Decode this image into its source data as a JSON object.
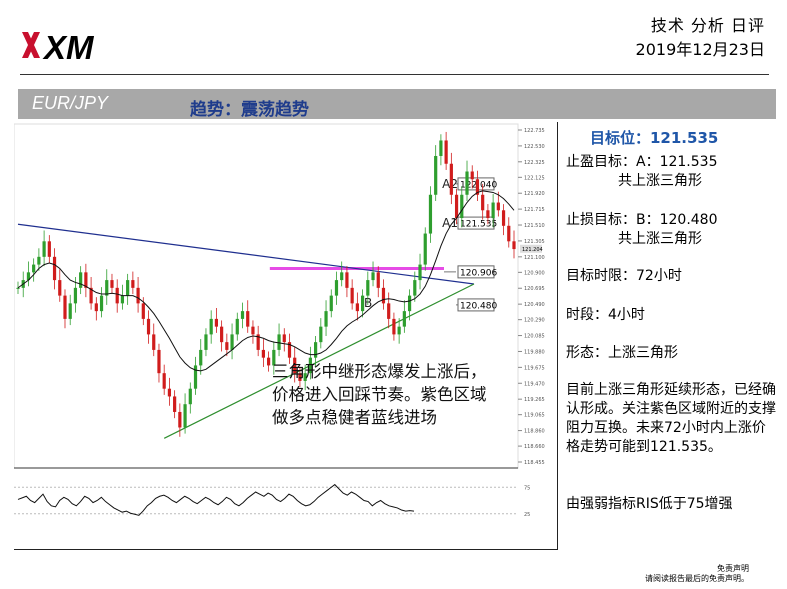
{
  "header": {
    "logo_text": "XM",
    "title": "技术 分析 日评",
    "date": "2019年12月23日"
  },
  "band": {
    "pair": "EUR/JPY",
    "trend": "趋势：震荡趋势"
  },
  "panel": {
    "target": "目标位：121.535",
    "take_profit_1": "止盈目标：A：121.535",
    "take_profit_2": "共上涨三角形",
    "stop_loss_1": "止损目标：B：120.480",
    "stop_loss_2": "共上涨三角形",
    "time_limit": "目标时限：72小时",
    "period": "时段：4小时",
    "pattern": "形态：上涨三角形",
    "description": "目前上涨三角形延续形态，已经确认形成。关注紫色区域附近的支撑阻力互换。未来72小时内上涨价格走势可能到121.535。",
    "rsi_note": "由强弱指标RIS低于75增强"
  },
  "disclaimer": {
    "line1": "免责声明",
    "line2": "请阅读报告最后的免责声明。"
  },
  "chart_data": {
    "type": "candlestick",
    "annotation": "三角形中继形态爆发上涨后，价格进入回踩节奏。紫色区域做多点稳健者蓝线进场",
    "ylim": [
      118.455,
      122.735
    ],
    "y_ticks": [
      "122.735",
      "122.530",
      "122.325",
      "122.125",
      "121.920",
      "121.715",
      "121.510",
      "121.305",
      "121.100",
      "120.900",
      "120.695",
      "120.490",
      "120.290",
      "120.085",
      "119.880",
      "119.675",
      "119.470",
      "119.265",
      "119.065",
      "118.860",
      "118.660",
      "118.455"
    ],
    "current_price_tag": "121.204",
    "level_labels": [
      {
        "value": 122.04,
        "label": "122.040",
        "marker": "A2",
        "color": "#999999"
      },
      {
        "value": 121.535,
        "label": "121.535",
        "marker": "A1",
        "color": "#999999"
      },
      {
        "value": 120.906,
        "label": "120.906",
        "marker": "",
        "color": "#e64be6"
      },
      {
        "value": 120.48,
        "label": "120.480",
        "marker": "B",
        "color": "#999999"
      }
    ],
    "close": [
      120.7,
      120.8,
      120.9,
      121.0,
      121.1,
      121.3,
      121.1,
      120.8,
      120.6,
      120.3,
      120.5,
      120.7,
      120.9,
      120.7,
      120.5,
      120.4,
      120.6,
      120.8,
      120.7,
      120.5,
      120.6,
      120.8,
      120.7,
      120.5,
      120.3,
      120.1,
      119.9,
      119.6,
      119.4,
      119.3,
      119.1,
      118.9,
      119.2,
      119.4,
      119.7,
      119.9,
      120.1,
      120.3,
      120.2,
      120.0,
      119.9,
      120.1,
      120.3,
      120.4,
      120.2,
      120.1,
      119.9,
      119.8,
      119.7,
      119.9,
      120.1,
      120.0,
      119.8,
      119.6,
      119.5,
      119.6,
      119.8,
      120.0,
      120.2,
      120.4,
      120.6,
      120.8,
      120.9,
      120.7,
      120.5,
      120.4,
      120.6,
      120.8,
      120.9,
      120.7,
      120.5,
      120.3,
      120.1,
      120.2,
      120.4,
      120.6,
      120.8,
      121.0,
      121.4,
      121.9,
      122.4,
      122.6,
      122.3,
      121.9,
      121.6,
      121.9,
      122.2,
      122.1,
      121.9,
      121.7,
      121.6,
      121.8,
      121.7,
      121.5,
      121.3,
      121.2
    ],
    "ma": [
      120.7,
      120.75,
      120.8,
      120.87,
      120.95,
      121.0,
      121.02,
      121.0,
      120.95,
      120.87,
      120.8,
      120.77,
      120.75,
      120.72,
      120.68,
      120.64,
      120.62,
      120.62,
      120.63,
      120.62,
      120.6,
      120.6,
      120.6,
      120.57,
      120.52,
      120.45,
      120.37,
      120.27,
      120.16,
      120.05,
      119.93,
      119.81,
      119.73,
      119.67,
      119.64,
      119.63,
      119.65,
      119.7,
      119.75,
      119.8,
      119.85,
      119.9,
      119.96,
      120.02,
      120.06,
      120.08,
      120.07,
      120.05,
      120.02,
      120.0,
      119.99,
      119.98,
      119.97,
      119.94,
      119.9,
      119.86,
      119.84,
      119.84,
      119.86,
      119.9,
      119.97,
      120.05,
      120.14,
      120.21,
      120.26,
      120.3,
      120.35,
      120.41,
      120.47,
      120.52,
      120.55,
      120.56,
      120.55,
      120.53,
      120.52,
      120.53,
      120.56,
      120.62,
      120.72,
      120.87,
      121.05,
      121.24,
      121.4,
      121.52,
      121.6,
      121.7,
      121.8,
      121.88,
      121.93,
      121.95,
      121.94,
      121.93,
      121.9,
      121.85,
      121.78,
      121.7
    ],
    "trendlines": [
      {
        "name": "blue-line",
        "color": "#1f2f8f",
        "from": [
          0,
          121.52
        ],
        "to": [
          95,
          120.75
        ]
      },
      {
        "name": "green-line",
        "color": "#2f8f2f",
        "from": [
          28,
          118.76
        ],
        "to": [
          95,
          120.75
        ]
      }
    ],
    "purple_zone": {
      "value": 120.95,
      "from": 49,
      "to": 95
    },
    "rsi": {
      "ylim": [
        0,
        100
      ],
      "ticks": [
        "75",
        "25"
      ],
      "values": [
        52,
        55,
        58,
        50,
        46,
        54,
        62,
        48,
        40,
        38,
        50,
        56,
        52,
        44,
        40,
        48,
        58,
        54,
        46,
        50,
        56,
        48,
        42,
        36,
        32,
        28,
        30,
        26,
        24,
        22,
        30,
        40,
        46,
        54,
        58,
        60,
        56,
        50,
        46,
        52,
        58,
        54,
        48,
        44,
        50,
        56,
        52,
        46,
        42,
        48,
        56,
        52,
        44,
        40,
        46,
        54,
        60,
        66,
        62,
        58,
        64,
        60,
        52,
        48,
        54,
        62,
        58,
        50,
        44,
        40,
        42,
        48,
        56,
        62,
        68,
        74,
        80,
        72,
        64,
        60,
        66,
        62,
        56,
        50,
        48,
        40,
        46,
        50,
        44,
        40,
        38,
        36,
        32,
        30,
        31,
        30
      ]
    }
  }
}
